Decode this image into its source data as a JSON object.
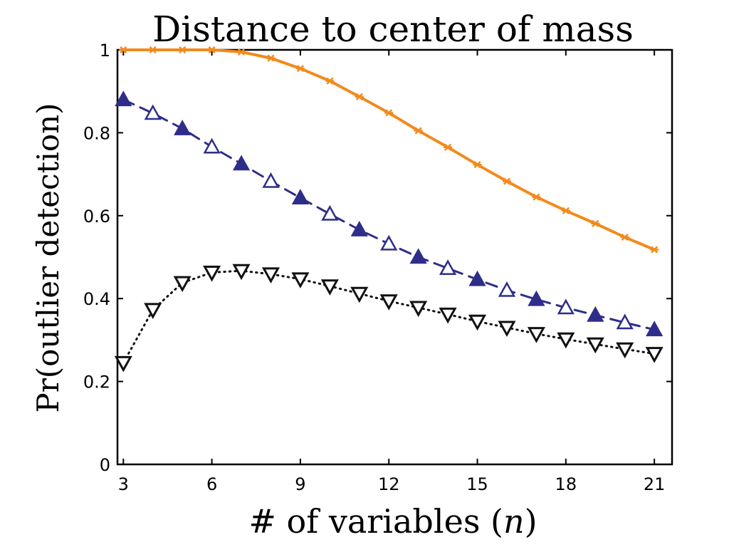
{
  "chart_data": {
    "type": "line",
    "title": "Distance to center of mass",
    "xlabel_prefix": "# of variables (",
    "xlabel_var": "n",
    "xlabel_suffix": ")",
    "ylabel": "Pr(outlier detection)",
    "xlim": [
      2.8,
      21.6
    ],
    "ylim": [
      0,
      1
    ],
    "xticks": [
      3,
      6,
      9,
      12,
      15,
      18,
      21
    ],
    "yticks": [
      0,
      0.2,
      0.4,
      0.6,
      0.8,
      1
    ],
    "ytick_labels": [
      "0",
      "0.2",
      "0.4",
      "0.6",
      "0.8",
      "1"
    ],
    "grid": false,
    "x": [
      3,
      4,
      5,
      6,
      7,
      8,
      9,
      10,
      11,
      12,
      13,
      14,
      15,
      16,
      17,
      18,
      19,
      20,
      21
    ],
    "series": [
      {
        "color": "#f28a1c",
        "line_style": "solid",
        "marker": "asterisk",
        "values": [
          1.0,
          1.0,
          1.0,
          1.0,
          0.995,
          0.98,
          0.955,
          0.925,
          0.887,
          0.848,
          0.805,
          0.765,
          0.723,
          0.683,
          0.645,
          0.612,
          0.581,
          0.548,
          0.518
        ]
      },
      {
        "color": "#2e2e8a",
        "line_style": "dashed",
        "marker": "triangle-up",
        "values": [
          0.88,
          0.847,
          0.81,
          0.766,
          0.725,
          0.683,
          0.643,
          0.604,
          0.566,
          0.532,
          0.5,
          0.473,
          0.446,
          0.42,
          0.398,
          0.378,
          0.36,
          0.342,
          0.325
        ]
      },
      {
        "color": "#111111",
        "line_style": "dotted",
        "marker": "triangle-down",
        "values": [
          0.245,
          0.373,
          0.438,
          0.463,
          0.467,
          0.459,
          0.447,
          0.43,
          0.412,
          0.394,
          0.378,
          0.362,
          0.345,
          0.33,
          0.315,
          0.302,
          0.29,
          0.278,
          0.267
        ]
      }
    ]
  }
}
